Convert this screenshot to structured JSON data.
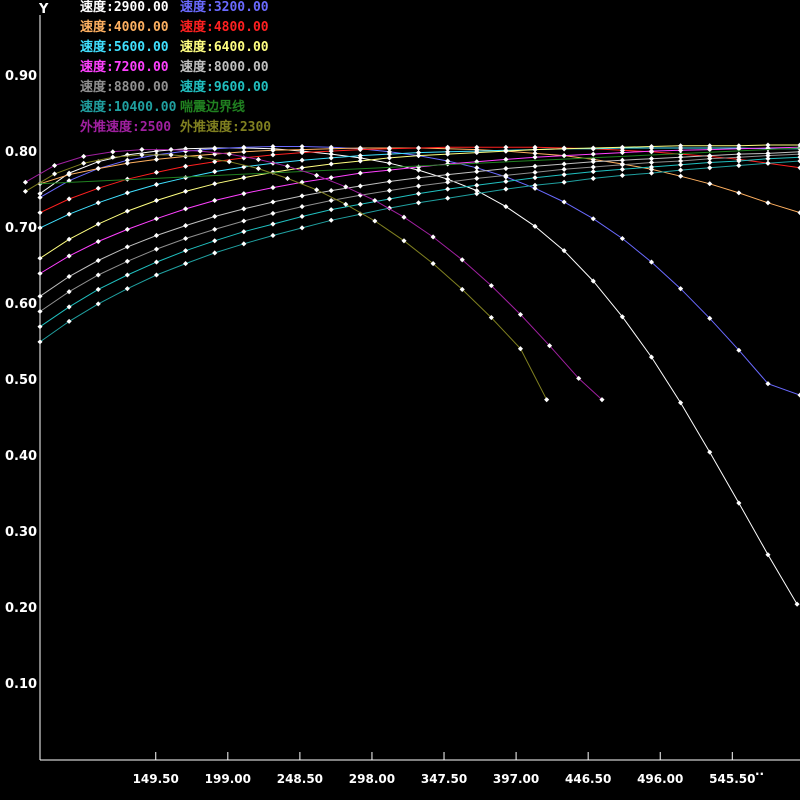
{
  "chart_data": {
    "type": "line",
    "ylabel": "Y",
    "xlabel": "",
    "xlim": [
      70,
      592
    ],
    "ylim": [
      0,
      0.98
    ],
    "grid": false,
    "legend_placement": "top-left",
    "x_ticks": [
      "149.50",
      "199.00",
      "248.50",
      "298.00",
      "347.50",
      "397.00",
      "446.50",
      "496.00",
      "545.50"
    ],
    "y_ticks": [
      "0.10",
      "0.20",
      "0.30",
      "0.40",
      "0.50",
      "0.60",
      "0.70",
      "0.80",
      "0.90"
    ],
    "corner_mark": "··",
    "series": [
      {
        "name": "速度:2900.00",
        "color": "#ffffff",
        "x": [
          70,
          90,
          110,
          130,
          150,
          170,
          190,
          210,
          230,
          250,
          270,
          290,
          310,
          330,
          350,
          370,
          390,
          410,
          430,
          450,
          470,
          490,
          510,
          530,
          550,
          570,
          590
        ],
        "y": [
          0.745,
          0.772,
          0.787,
          0.796,
          0.801,
          0.804,
          0.805,
          0.805,
          0.804,
          0.801,
          0.797,
          0.792,
          0.785,
          0.776,
          0.764,
          0.749,
          0.728,
          0.702,
          0.67,
          0.63,
          0.583,
          0.53,
          0.47,
          0.405,
          0.338,
          0.27,
          0.205
        ]
      },
      {
        "name": "速度:3200.00",
        "color": "#6a6aff",
        "x": [
          70,
          90,
          110,
          130,
          150,
          170,
          190,
          210,
          230,
          250,
          270,
          290,
          310,
          330,
          350,
          370,
          390,
          410,
          430,
          450,
          470,
          490,
          510,
          530,
          550,
          570,
          592
        ],
        "y": [
          0.74,
          0.762,
          0.778,
          0.789,
          0.796,
          0.801,
          0.804,
          0.806,
          0.807,
          0.807,
          0.806,
          0.804,
          0.8,
          0.795,
          0.788,
          0.779,
          0.767,
          0.752,
          0.734,
          0.712,
          0.686,
          0.655,
          0.62,
          0.581,
          0.539,
          0.495,
          0.48
        ]
      },
      {
        "name": "速度:4000.00",
        "color": "#ffb060",
        "x": [
          70,
          90,
          110,
          130,
          150,
          170,
          190,
          210,
          230,
          250,
          270,
          290,
          310,
          330,
          350,
          370,
          390,
          410,
          430,
          450,
          470,
          490,
          510,
          530,
          550,
          570,
          592
        ],
        "y": [
          0.758,
          0.77,
          0.778,
          0.785,
          0.79,
          0.794,
          0.797,
          0.8,
          0.802,
          0.803,
          0.804,
          0.805,
          0.805,
          0.805,
          0.804,
          0.803,
          0.801,
          0.798,
          0.795,
          0.79,
          0.784,
          0.777,
          0.768,
          0.758,
          0.746,
          0.733,
          0.72
        ]
      },
      {
        "name": "速度:4800.00",
        "color": "#ff2020",
        "x": [
          70,
          90,
          110,
          130,
          150,
          170,
          190,
          210,
          230,
          250,
          270,
          290,
          310,
          330,
          350,
          370,
          390,
          410,
          430,
          450,
          470,
          490,
          510,
          530,
          550,
          570,
          592
        ],
        "y": [
          0.72,
          0.738,
          0.752,
          0.764,
          0.773,
          0.781,
          0.787,
          0.792,
          0.796,
          0.799,
          0.801,
          0.803,
          0.804,
          0.805,
          0.806,
          0.806,
          0.806,
          0.806,
          0.805,
          0.804,
          0.802,
          0.8,
          0.797,
          0.794,
          0.79,
          0.785,
          0.779
        ]
      },
      {
        "name": "速度:5600.00",
        "color": "#40e0ff",
        "x": [
          70,
          90,
          110,
          130,
          150,
          170,
          190,
          210,
          230,
          250,
          270,
          290,
          310,
          330,
          350,
          370,
          390,
          410,
          430,
          450,
          470,
          490,
          510,
          530,
          550,
          570,
          592
        ],
        "y": [
          0.7,
          0.718,
          0.733,
          0.746,
          0.757,
          0.766,
          0.774,
          0.78,
          0.785,
          0.789,
          0.792,
          0.795,
          0.797,
          0.799,
          0.8,
          0.801,
          0.802,
          0.803,
          0.804,
          0.804,
          0.805,
          0.805,
          0.805,
          0.805,
          0.805,
          0.804,
          0.804
        ]
      },
      {
        "name": "速度:6400.00",
        "color": "#ffff80",
        "x": [
          70,
          90,
          110,
          130,
          150,
          170,
          190,
          210,
          230,
          250,
          270,
          290,
          310,
          330,
          350,
          370,
          390,
          410,
          430,
          450,
          470,
          490,
          510,
          530,
          550,
          570,
          592
        ],
        "y": [
          0.66,
          0.685,
          0.705,
          0.722,
          0.736,
          0.748,
          0.758,
          0.766,
          0.773,
          0.779,
          0.784,
          0.788,
          0.792,
          0.795,
          0.797,
          0.799,
          0.801,
          0.803,
          0.804,
          0.805,
          0.806,
          0.807,
          0.808,
          0.808,
          0.808,
          0.809,
          0.809
        ]
      },
      {
        "name": "速度:7200.00",
        "color": "#ff40ff",
        "x": [
          70,
          90,
          110,
          130,
          150,
          170,
          190,
          210,
          230,
          250,
          270,
          290,
          310,
          330,
          350,
          370,
          390,
          410,
          430,
          450,
          470,
          490,
          510,
          530,
          550,
          570,
          592
        ],
        "y": [
          0.64,
          0.663,
          0.682,
          0.698,
          0.712,
          0.725,
          0.736,
          0.745,
          0.753,
          0.76,
          0.766,
          0.772,
          0.776,
          0.78,
          0.784,
          0.787,
          0.79,
          0.793,
          0.795,
          0.797,
          0.799,
          0.801,
          0.802,
          0.803,
          0.804,
          0.805,
          0.806
        ]
      },
      {
        "name": "速度:8000.00",
        "color": "#c0c0c0",
        "x": [
          70,
          90,
          110,
          130,
          150,
          170,
          190,
          210,
          230,
          250,
          270,
          290,
          310,
          330,
          350,
          370,
          390,
          410,
          430,
          450,
          470,
          490,
          510,
          530,
          550,
          570,
          592
        ],
        "y": [
          0.61,
          0.636,
          0.657,
          0.675,
          0.69,
          0.703,
          0.715,
          0.725,
          0.734,
          0.742,
          0.749,
          0.755,
          0.761,
          0.766,
          0.77,
          0.774,
          0.778,
          0.781,
          0.784,
          0.787,
          0.789,
          0.791,
          0.793,
          0.795,
          0.797,
          0.798,
          0.8
        ]
      },
      {
        "name": "速度:8800.00",
        "color": "#909090",
        "x": [
          70,
          90,
          110,
          130,
          150,
          170,
          190,
          210,
          230,
          250,
          270,
          290,
          310,
          330,
          350,
          370,
          390,
          410,
          430,
          450,
          470,
          490,
          510,
          530,
          550,
          570,
          592
        ],
        "y": [
          0.59,
          0.616,
          0.638,
          0.656,
          0.672,
          0.686,
          0.698,
          0.709,
          0.719,
          0.728,
          0.736,
          0.743,
          0.749,
          0.755,
          0.76,
          0.765,
          0.769,
          0.773,
          0.777,
          0.78,
          0.783,
          0.786,
          0.788,
          0.791,
          0.793,
          0.795,
          0.797
        ]
      },
      {
        "name": "速度:9600.00",
        "color": "#20c0c0",
        "x": [
          70,
          90,
          110,
          130,
          150,
          170,
          190,
          210,
          230,
          250,
          270,
          290,
          310,
          330,
          350,
          370,
          390,
          410,
          430,
          450,
          470,
          490,
          510,
          530,
          550,
          570,
          592
        ],
        "y": [
          0.57,
          0.596,
          0.619,
          0.638,
          0.655,
          0.67,
          0.683,
          0.695,
          0.705,
          0.715,
          0.724,
          0.731,
          0.738,
          0.745,
          0.751,
          0.756,
          0.761,
          0.766,
          0.77,
          0.774,
          0.777,
          0.78,
          0.783,
          0.786,
          0.788,
          0.791,
          0.793
        ]
      },
      {
        "name": "速度:10400.00",
        "color": "#20a0a0",
        "x": [
          70,
          90,
          110,
          130,
          150,
          170,
          190,
          210,
          230,
          250,
          270,
          290,
          310,
          330,
          350,
          370,
          390,
          410,
          430,
          450,
          470,
          490,
          510,
          530,
          550,
          570,
          592
        ],
        "y": [
          0.55,
          0.577,
          0.6,
          0.62,
          0.638,
          0.653,
          0.667,
          0.679,
          0.69,
          0.7,
          0.71,
          0.718,
          0.726,
          0.733,
          0.739,
          0.745,
          0.751,
          0.756,
          0.76,
          0.765,
          0.769,
          0.772,
          0.776,
          0.779,
          0.782,
          0.785,
          0.788
        ]
      },
      {
        "name": "喘震边界线",
        "color": "#208020",
        "markers": false,
        "x": [
          70,
          592
        ],
        "y": [
          0.758,
          0.805
        ]
      },
      {
        "name": "外推速度:2500",
        "color": "#a020a0",
        "x": [
          60,
          80,
          100,
          120,
          140,
          160,
          180,
          200,
          220,
          240,
          260,
          280,
          300,
          320,
          340,
          360,
          380,
          400,
          420,
          440,
          456
        ],
        "y": [
          0.76,
          0.782,
          0.794,
          0.8,
          0.803,
          0.803,
          0.801,
          0.797,
          0.79,
          0.781,
          0.769,
          0.754,
          0.736,
          0.714,
          0.688,
          0.658,
          0.624,
          0.586,
          0.545,
          0.502,
          0.474
        ]
      },
      {
        "name": "外推速度:2300",
        "color": "#808020",
        "x": [
          60,
          80,
          100,
          120,
          140,
          160,
          180,
          200,
          220,
          240,
          260,
          280,
          300,
          320,
          340,
          360,
          380,
          400,
          418
        ],
        "y": [
          0.748,
          0.771,
          0.785,
          0.793,
          0.796,
          0.796,
          0.793,
          0.787,
          0.778,
          0.765,
          0.75,
          0.731,
          0.709,
          0.683,
          0.653,
          0.619,
          0.582,
          0.541,
          0.474
        ]
      }
    ]
  }
}
